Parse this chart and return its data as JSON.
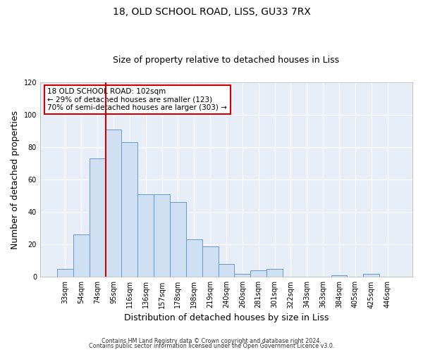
{
  "title": "18, OLD SCHOOL ROAD, LISS, GU33 7RX",
  "subtitle": "Size of property relative to detached houses in Liss",
  "xlabel": "Distribution of detached houses by size in Liss",
  "ylabel": "Number of detached properties",
  "bar_labels": [
    "33sqm",
    "54sqm",
    "74sqm",
    "95sqm",
    "116sqm",
    "136sqm",
    "157sqm",
    "178sqm",
    "198sqm",
    "219sqm",
    "240sqm",
    "260sqm",
    "281sqm",
    "301sqm",
    "322sqm",
    "343sqm",
    "363sqm",
    "384sqm",
    "405sqm",
    "425sqm",
    "446sqm"
  ],
  "bar_values": [
    5,
    26,
    73,
    91,
    83,
    51,
    51,
    46,
    23,
    19,
    8,
    2,
    4,
    5,
    0,
    0,
    0,
    1,
    0,
    2,
    0
  ],
  "bar_color": "#cfe0f3",
  "bar_edge_color": "#6699cc",
  "ylim": [
    0,
    120
  ],
  "yticks": [
    0,
    20,
    40,
    60,
    80,
    100,
    120
  ],
  "vline_color": "#cc0000",
  "annotation_line1": "18 OLD SCHOOL ROAD: 102sqm",
  "annotation_line2": "← 29% of detached houses are smaller (123)",
  "annotation_line3": "70% of semi-detached houses are larger (303) →",
  "footer_line1": "Contains HM Land Registry data © Crown copyright and database right 2024.",
  "footer_line2": "Contains public sector information licensed under the Open Government Licence v3.0.",
  "background_color": "#ffffff",
  "plot_background_color": "#e8eef8",
  "grid_color": "#ffffff",
  "title_fontsize": 10,
  "subtitle_fontsize": 9,
  "axis_label_fontsize": 9,
  "tick_fontsize": 7
}
